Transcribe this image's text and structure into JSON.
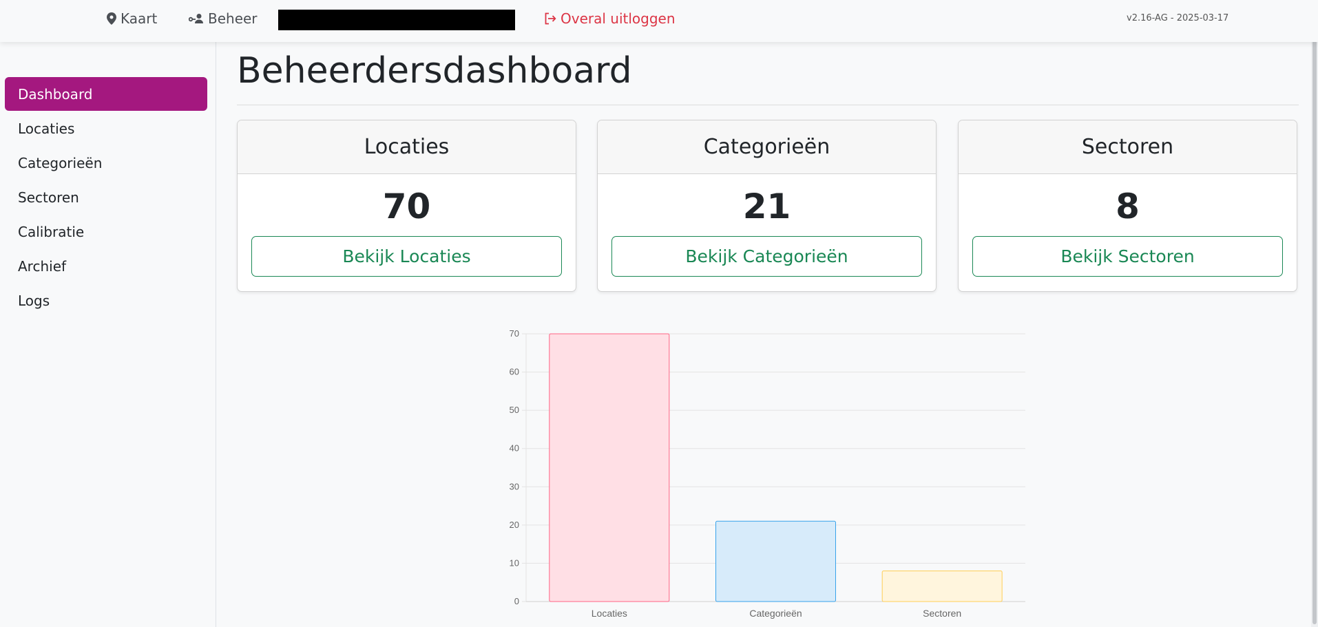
{
  "nav": {
    "kaart": "Kaart",
    "beheer": "Beheer",
    "logout": "Overal uitloggen",
    "version": "v2.16-AG - 2025-03-17"
  },
  "sidebar": {
    "items": [
      {
        "label": "Dashboard",
        "active": true
      },
      {
        "label": "Locaties",
        "active": false
      },
      {
        "label": "Categorieën",
        "active": false
      },
      {
        "label": "Sectoren",
        "active": false
      },
      {
        "label": "Calibratie",
        "active": false
      },
      {
        "label": "Archief",
        "active": false
      },
      {
        "label": "Logs",
        "active": false
      }
    ]
  },
  "main": {
    "title": "Beheerdersdashboard",
    "cards": [
      {
        "title": "Locaties",
        "count": "70",
        "button": "Bekijk Locaties"
      },
      {
        "title": "Categorieën",
        "count": "21",
        "button": "Bekijk Categorieën"
      },
      {
        "title": "Sectoren",
        "count": "8",
        "button": "Bekijk Sectoren"
      }
    ]
  },
  "colors": {
    "accent": "#a4187f",
    "logout": "#dc3545",
    "button": "#198754"
  },
  "chart_data": {
    "type": "bar",
    "categories": [
      "Locaties",
      "Categorieën",
      "Sectoren"
    ],
    "values": [
      70,
      21,
      8
    ],
    "ylim": [
      0,
      70
    ],
    "yticks": [
      0,
      10,
      20,
      30,
      40,
      50,
      60,
      70
    ],
    "grid": true,
    "bar_colors": [
      {
        "fill": "#ffdfe5",
        "stroke": "#ff6384"
      },
      {
        "fill": "#d7ebfa",
        "stroke": "#36a2eb"
      },
      {
        "fill": "#fff5dd",
        "stroke": "#ffce56"
      }
    ]
  }
}
